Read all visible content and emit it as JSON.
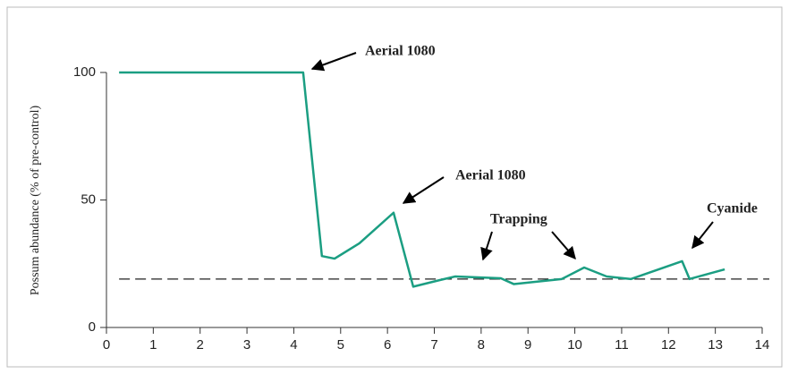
{
  "chart_data": {
    "type": "line",
    "y_label": "Possum abundance (% of pre-control)",
    "x": [
      0.27,
      4.2,
      4.6,
      4.87,
      5.4,
      6.13,
      6.55,
      7.12,
      7.45,
      8.42,
      8.7,
      9.72,
      10.2,
      10.68,
      11.2,
      12.29,
      12.45,
      13.2
    ],
    "series": [
      {
        "color": "#1b9e82",
        "values": [
          100,
          100,
          28,
          27,
          33,
          45,
          16,
          18.6,
          20,
          19.3,
          17,
          19,
          23.5,
          20,
          19,
          26,
          19,
          22.8
        ]
      }
    ],
    "reference_line": 19,
    "xlim": [
      0,
      14
    ],
    "xticks": [
      0,
      1,
      2,
      3,
      4,
      5,
      6,
      7,
      8,
      9,
      10,
      11,
      12,
      13,
      14
    ],
    "ylim": [
      0,
      100
    ],
    "yticks": [
      0,
      50,
      100
    ],
    "annotations": [
      "Aerial 1080",
      "Aerial 1080",
      "Trapping",
      "Cyanide"
    ]
  }
}
